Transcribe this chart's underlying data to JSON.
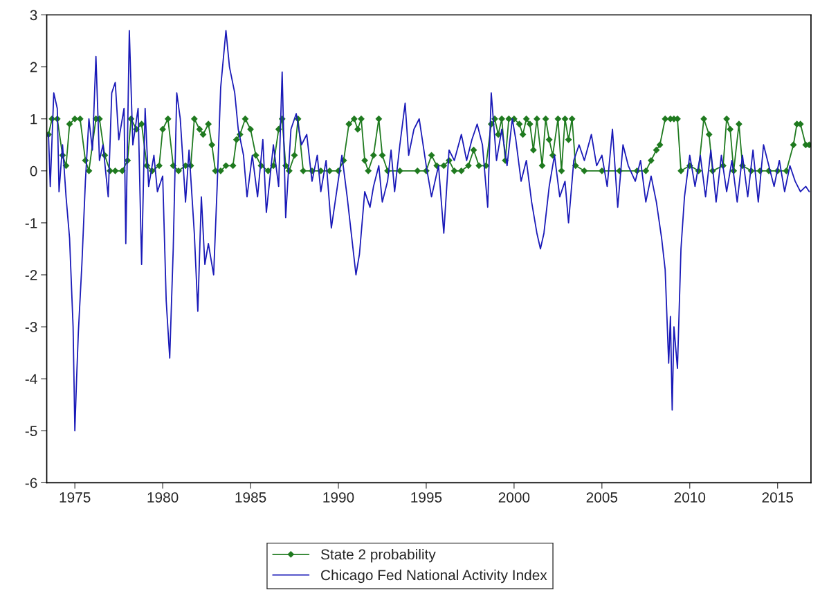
{
  "chart_data": {
    "type": "line",
    "xlim": [
      1973.4,
      2016.9
    ],
    "ylim": [
      -6,
      3
    ],
    "xticks": [
      1975,
      1980,
      1985,
      1990,
      1995,
      2000,
      2005,
      2010,
      2015
    ],
    "yticks": [
      -6,
      -5,
      -4,
      -3,
      -2,
      -1,
      0,
      1,
      2,
      3
    ],
    "grid": false,
    "legend": "bottom",
    "series": [
      {
        "name": "State 2 probability",
        "color": "#1f7a1f",
        "marker": "diamond",
        "x": [
          1973.5,
          1973.7,
          1974.0,
          1974.3,
          1974.5,
          1974.7,
          1975.0,
          1975.3,
          1975.6,
          1975.8,
          1976.2,
          1976.4,
          1976.7,
          1977.0,
          1977.3,
          1977.7,
          1978.0,
          1978.2,
          1978.5,
          1978.8,
          1979.1,
          1979.4,
          1979.8,
          1980.0,
          1980.3,
          1980.6,
          1980.9,
          1981.3,
          1981.6,
          1981.8,
          1982.1,
          1982.3,
          1982.6,
          1982.8,
          1983.0,
          1983.3,
          1983.6,
          1984.0,
          1984.2,
          1984.4,
          1984.7,
          1985.0,
          1985.3,
          1985.6,
          1986.0,
          1986.3,
          1986.6,
          1986.8,
          1987.0,
          1987.2,
          1987.5,
          1987.7,
          1988.0,
          1988.5,
          1989.0,
          1989.5,
          1990.0,
          1990.3,
          1990.6,
          1990.9,
          1991.1,
          1991.3,
          1991.5,
          1991.7,
          1992.0,
          1992.3,
          1992.5,
          1992.8,
          1993.5,
          1994.5,
          1995.0,
          1995.3,
          1995.6,
          1996.0,
          1996.3,
          1996.6,
          1997.0,
          1997.4,
          1997.7,
          1998.0,
          1998.4,
          1998.7,
          1998.9,
          1999.1,
          1999.3,
          1999.5,
          1999.7,
          2000.0,
          2000.3,
          2000.5,
          2000.7,
          2000.9,
          2001.1,
          2001.3,
          2001.6,
          2001.8,
          2002.0,
          2002.2,
          2002.5,
          2002.7,
          2002.9,
          2003.1,
          2003.3,
          2003.5,
          2004.0,
          2005.0,
          2006.0,
          2007.0,
          2007.5,
          2007.8,
          2008.1,
          2008.3,
          2008.6,
          2008.9,
          2009.1,
          2009.3,
          2009.5,
          2010.0,
          2010.5,
          2010.8,
          2011.1,
          2011.3,
          2011.9,
          2012.1,
          2012.3,
          2012.5,
          2012.8,
          2013.0,
          2013.5,
          2014.0,
          2014.5,
          2015.0,
          2015.5,
          2015.9,
          2016.1,
          2016.3,
          2016.6,
          2016.8
        ],
        "values": [
          0.7,
          1.0,
          1.0,
          0.3,
          0.1,
          0.9,
          1.0,
          1.0,
          0.2,
          0.0,
          1.0,
          1.0,
          0.3,
          0.0,
          0.0,
          0.0,
          0.2,
          1.0,
          0.8,
          0.9,
          0.1,
          0.0,
          0.1,
          0.8,
          1.0,
          0.1,
          0.0,
          0.1,
          0.1,
          1.0,
          0.8,
          0.7,
          0.9,
          0.5,
          0.0,
          0.0,
          0.1,
          0.1,
          0.6,
          0.7,
          1.0,
          0.8,
          0.3,
          0.1,
          0.0,
          0.1,
          0.8,
          1.0,
          0.1,
          0.0,
          0.3,
          1.0,
          0.0,
          0.0,
          0.0,
          0.0,
          0.0,
          0.2,
          0.9,
          1.0,
          0.8,
          1.0,
          0.2,
          0.0,
          0.3,
          1.0,
          0.3,
          0.0,
          0.0,
          0.0,
          0.0,
          0.3,
          0.1,
          0.1,
          0.2,
          0.0,
          0.0,
          0.1,
          0.4,
          0.1,
          0.1,
          0.9,
          1.0,
          0.7,
          1.0,
          0.2,
          1.0,
          1.0,
          0.9,
          0.7,
          1.0,
          0.9,
          0.4,
          1.0,
          0.1,
          1.0,
          0.6,
          0.3,
          1.0,
          0.0,
          1.0,
          0.6,
          1.0,
          0.1,
          0.0,
          0.0,
          0.0,
          0.0,
          0.0,
          0.2,
          0.4,
          0.5,
          1.0,
          1.0,
          1.0,
          1.0,
          0.0,
          0.1,
          0.0,
          1.0,
          0.7,
          0.0,
          0.1,
          1.0,
          0.8,
          0.0,
          0.9,
          0.1,
          0.0,
          0.0,
          0.0,
          0.0,
          0.0,
          0.5,
          0.9,
          0.9,
          0.5,
          0.5
        ]
      },
      {
        "name": "Chicago Fed National Activity Index",
        "color": "#1a1ab8",
        "marker": "none",
        "x": [
          1973.5,
          1973.6,
          1973.8,
          1974.0,
          1974.1,
          1974.3,
          1974.5,
          1974.7,
          1974.9,
          1975.0,
          1975.1,
          1975.2,
          1975.4,
          1975.6,
          1975.8,
          1976.0,
          1976.2,
          1976.4,
          1976.6,
          1976.9,
          1977.1,
          1977.3,
          1977.5,
          1977.8,
          1977.9,
          1978.1,
          1978.3,
          1978.6,
          1978.8,
          1979.0,
          1979.2,
          1979.5,
          1979.7,
          1980.0,
          1980.2,
          1980.4,
          1980.6,
          1980.8,
          1981.0,
          1981.3,
          1981.5,
          1981.8,
          1982.0,
          1982.2,
          1982.4,
          1982.6,
          1982.9,
          1983.1,
          1983.3,
          1983.6,
          1983.8,
          1984.1,
          1984.3,
          1984.6,
          1984.8,
          1985.1,
          1985.4,
          1985.7,
          1985.9,
          1986.3,
          1986.6,
          1986.8,
          1987.0,
          1987.3,
          1987.6,
          1987.9,
          1988.2,
          1988.5,
          1988.8,
          1989.0,
          1989.3,
          1989.6,
          1989.9,
          1990.2,
          1990.5,
          1990.8,
          1991.0,
          1991.2,
          1991.5,
          1991.8,
          1992.0,
          1992.3,
          1992.5,
          1992.8,
          1993.0,
          1993.2,
          1993.5,
          1993.8,
          1994.0,
          1994.3,
          1994.6,
          1995.0,
          1995.3,
          1995.7,
          1996.0,
          1996.3,
          1996.6,
          1997.0,
          1997.3,
          1997.6,
          1997.9,
          1998.2,
          1998.5,
          1998.7,
          1999.0,
          1999.3,
          1999.6,
          1999.9,
          2000.1,
          2000.4,
          2000.7,
          2001.0,
          2001.3,
          2001.5,
          2001.7,
          2002.0,
          2002.3,
          2002.6,
          2002.9,
          2003.1,
          2003.4,
          2003.7,
          2004.0,
          2004.4,
          2004.7,
          2005.0,
          2005.3,
          2005.6,
          2005.9,
          2006.2,
          2006.5,
          2006.9,
          2007.2,
          2007.5,
          2007.8,
          2008.1,
          2008.4,
          2008.6,
          2008.8,
          2008.9,
          2009.0,
          2009.1,
          2009.3,
          2009.5,
          2009.7,
          2010.0,
          2010.3,
          2010.6,
          2010.9,
          2011.2,
          2011.5,
          2011.8,
          2012.1,
          2012.4,
          2012.7,
          2013.0,
          2013.3,
          2013.6,
          2013.9,
          2014.2,
          2014.5,
          2014.8,
          2015.1,
          2015.4,
          2015.7,
          2016.0,
          2016.3,
          2016.6,
          2016.8
        ],
        "values": [
          0.7,
          -0.3,
          1.5,
          1.2,
          -0.4,
          0.5,
          -0.5,
          -1.3,
          -3.0,
          -5.0,
          -4.0,
          -3.1,
          -1.8,
          -0.2,
          1.0,
          0.4,
          2.2,
          0.2,
          0.5,
          -0.5,
          1.5,
          1.7,
          0.6,
          1.2,
          -1.4,
          2.7,
          0.5,
          1.2,
          -1.8,
          1.2,
          -0.3,
          0.3,
          -0.4,
          -0.1,
          -2.5,
          -3.6,
          -1.5,
          1.5,
          1.0,
          -0.6,
          0.4,
          -1.2,
          -2.7,
          -0.5,
          -1.8,
          -1.4,
          -2.0,
          -0.3,
          1.6,
          2.7,
          2.0,
          1.5,
          0.8,
          0.3,
          -0.5,
          0.3,
          -0.5,
          0.6,
          -0.8,
          0.5,
          -0.3,
          1.9,
          -0.9,
          0.8,
          1.1,
          0.5,
          0.7,
          -0.2,
          0.3,
          -0.4,
          0.2,
          -1.1,
          -0.4,
          0.3,
          -0.5,
          -1.4,
          -2.0,
          -1.6,
          -0.4,
          -0.7,
          -0.3,
          0.1,
          -0.6,
          -0.2,
          0.4,
          -0.4,
          0.5,
          1.3,
          0.3,
          0.8,
          1.0,
          0.1,
          -0.5,
          0.1,
          -1.2,
          0.4,
          0.2,
          0.7,
          0.2,
          0.6,
          0.9,
          0.5,
          -0.7,
          1.5,
          0.2,
          0.8,
          0.1,
          1.0,
          0.6,
          -0.2,
          0.2,
          -0.6,
          -1.2,
          -1.5,
          -1.2,
          -0.3,
          0.3,
          -0.5,
          -0.2,
          -1.0,
          0.2,
          0.5,
          0.2,
          0.7,
          0.1,
          0.3,
          -0.3,
          0.8,
          -0.7,
          0.5,
          0.1,
          -0.2,
          0.2,
          -0.6,
          -0.1,
          -0.6,
          -1.3,
          -1.9,
          -3.7,
          -2.8,
          -4.6,
          -3.0,
          -3.8,
          -1.5,
          -0.5,
          0.3,
          -0.3,
          0.3,
          -0.5,
          0.4,
          -0.6,
          0.3,
          -0.4,
          0.2,
          -0.6,
          0.3,
          -0.5,
          0.4,
          -0.6,
          0.5,
          0.1,
          -0.3,
          0.2,
          -0.4,
          0.1,
          -0.2,
          -0.4,
          -0.3,
          -0.4
        ]
      }
    ]
  }
}
